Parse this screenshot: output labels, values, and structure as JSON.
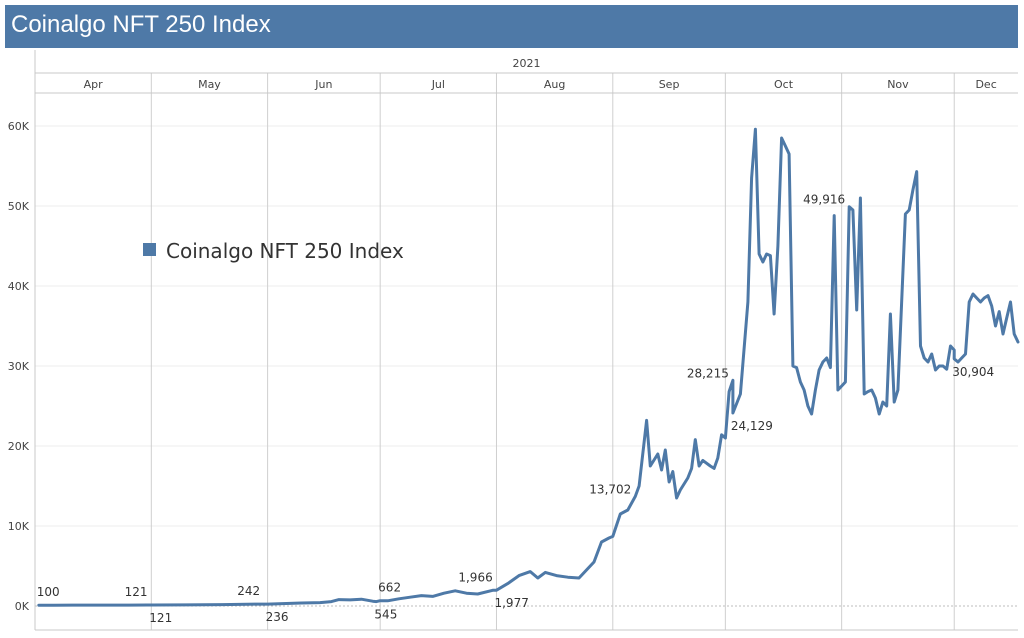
{
  "header": {
    "title": "Coinalgo NFT 250 Index"
  },
  "chart_data": {
    "type": "line",
    "title": "Coinalgo NFT 250 Index",
    "year_label": "2021",
    "months": [
      "Apr",
      "May",
      "Jun",
      "Jul",
      "Aug",
      "Sep",
      "Oct",
      "Nov",
      "Dec"
    ],
    "x_range": [
      "2021-03-31",
      "2021-12-18"
    ],
    "ylim": [
      0,
      62000
    ],
    "y_ticks": [
      0,
      10000,
      20000,
      30000,
      40000,
      50000,
      60000
    ],
    "y_tick_labels": [
      "0K",
      "10K",
      "20K",
      "30K",
      "40K",
      "50K",
      "60K"
    ],
    "grid": true,
    "legend": {
      "position": "left",
      "entries": [
        {
          "name": "Coinalgo NFT 250 Index",
          "color": "#4e79a7"
        }
      ]
    },
    "series": [
      {
        "name": "Coinalgo NFT 250 Index",
        "color": "#4e79a7",
        "points": [
          [
            "2021-04-01",
            100
          ],
          [
            "2021-04-05",
            105
          ],
          [
            "2021-04-10",
            112
          ],
          [
            "2021-04-15",
            110
          ],
          [
            "2021-04-20",
            116
          ],
          [
            "2021-04-25",
            118
          ],
          [
            "2021-04-30",
            121
          ],
          [
            "2021-05-01",
            121
          ],
          [
            "2021-05-10",
            140
          ],
          [
            "2021-05-20",
            170
          ],
          [
            "2021-05-30",
            242
          ],
          [
            "2021-06-01",
            236
          ],
          [
            "2021-06-05",
            300
          ],
          [
            "2021-06-10",
            380
          ],
          [
            "2021-06-15",
            420
          ],
          [
            "2021-06-18",
            550
          ],
          [
            "2021-06-20",
            800
          ],
          [
            "2021-06-23",
            760
          ],
          [
            "2021-06-26",
            850
          ],
          [
            "2021-06-29",
            600
          ],
          [
            "2021-06-30",
            545
          ],
          [
            "2021-07-01",
            662
          ],
          [
            "2021-07-03",
            650
          ],
          [
            "2021-07-06",
            900
          ],
          [
            "2021-07-09",
            1100
          ],
          [
            "2021-07-12",
            1300
          ],
          [
            "2021-07-15",
            1200
          ],
          [
            "2021-07-18",
            1600
          ],
          [
            "2021-07-21",
            1900
          ],
          [
            "2021-07-24",
            1600
          ],
          [
            "2021-07-27",
            1500
          ],
          [
            "2021-07-31",
            1966
          ],
          [
            "2021-08-01",
            1977
          ],
          [
            "2021-08-04",
            2800
          ],
          [
            "2021-08-07",
            3800
          ],
          [
            "2021-08-10",
            4300
          ],
          [
            "2021-08-12",
            3500
          ],
          [
            "2021-08-14",
            4200
          ],
          [
            "2021-08-17",
            3800
          ],
          [
            "2021-08-20",
            3600
          ],
          [
            "2021-08-23",
            3500
          ],
          [
            "2021-08-25",
            4500
          ],
          [
            "2021-08-27",
            5500
          ],
          [
            "2021-08-29",
            8000
          ],
          [
            "2021-08-31",
            8500
          ],
          [
            "2021-09-01",
            8700
          ],
          [
            "2021-09-03",
            11500
          ],
          [
            "2021-09-05",
            12000
          ],
          [
            "2021-09-07",
            13702
          ],
          [
            "2021-09-08",
            15000
          ],
          [
            "2021-09-10",
            23200
          ],
          [
            "2021-09-11",
            17500
          ],
          [
            "2021-09-13",
            19000
          ],
          [
            "2021-09-14",
            17000
          ],
          [
            "2021-09-15",
            19500
          ],
          [
            "2021-09-16",
            15500
          ],
          [
            "2021-09-17",
            16800
          ],
          [
            "2021-09-18",
            13500
          ],
          [
            "2021-09-19",
            14500
          ],
          [
            "2021-09-21",
            16000
          ],
          [
            "2021-09-22",
            17200
          ],
          [
            "2021-09-23",
            20800
          ],
          [
            "2021-09-24",
            17500
          ],
          [
            "2021-09-25",
            18200
          ],
          [
            "2021-09-27",
            17500
          ],
          [
            "2021-09-28",
            17200
          ],
          [
            "2021-09-29",
            18500
          ],
          [
            "2021-09-30",
            21400
          ],
          [
            "2021-10-01",
            21000
          ],
          [
            "2021-10-02",
            26800
          ],
          [
            "2021-10-03",
            28215
          ],
          [
            "2021-10-03",
            24129
          ],
          [
            "2021-10-05",
            26500
          ],
          [
            "2021-10-07",
            38000
          ],
          [
            "2021-10-08",
            53500
          ],
          [
            "2021-10-09",
            59600
          ],
          [
            "2021-10-10",
            44000
          ],
          [
            "2021-10-11",
            43000
          ],
          [
            "2021-10-12",
            44000
          ],
          [
            "2021-10-13",
            43800
          ],
          [
            "2021-10-14",
            36500
          ],
          [
            "2021-10-15",
            45000
          ],
          [
            "2021-10-16",
            58500
          ],
          [
            "2021-10-17",
            57500
          ],
          [
            "2021-10-18",
            56500
          ],
          [
            "2021-10-19",
            30000
          ],
          [
            "2021-10-20",
            29800
          ],
          [
            "2021-10-21",
            28000
          ],
          [
            "2021-10-22",
            27000
          ],
          [
            "2021-10-23",
            25000
          ],
          [
            "2021-10-24",
            24000
          ],
          [
            "2021-10-25",
            27000
          ],
          [
            "2021-10-26",
            29500
          ],
          [
            "2021-10-27",
            30500
          ],
          [
            "2021-10-28",
            31000
          ],
          [
            "2021-10-29",
            29800
          ],
          [
            "2021-10-30",
            48800
          ],
          [
            "2021-10-31",
            27000
          ],
          [
            "2021-11-01",
            27500
          ],
          [
            "2021-11-02",
            28000
          ],
          [
            "2021-11-03",
            49916
          ],
          [
            "2021-11-04",
            49500
          ],
          [
            "2021-11-05",
            37000
          ],
          [
            "2021-11-06",
            51000
          ],
          [
            "2021-11-07",
            26500
          ],
          [
            "2021-11-08",
            26800
          ],
          [
            "2021-11-09",
            27000
          ],
          [
            "2021-11-10",
            26000
          ],
          [
            "2021-11-11",
            24000
          ],
          [
            "2021-11-12",
            25500
          ],
          [
            "2021-11-13",
            25000
          ],
          [
            "2021-11-14",
            36500
          ],
          [
            "2021-11-15",
            25500
          ],
          [
            "2021-11-16",
            27000
          ],
          [
            "2021-11-18",
            49000
          ],
          [
            "2021-11-19",
            49500
          ],
          [
            "2021-11-20",
            52000
          ],
          [
            "2021-11-21",
            54300
          ],
          [
            "2021-11-22",
            32500
          ],
          [
            "2021-11-23",
            31000
          ],
          [
            "2021-11-24",
            30500
          ],
          [
            "2021-11-25",
            31500
          ],
          [
            "2021-11-26",
            29500
          ],
          [
            "2021-11-27",
            30000
          ],
          [
            "2021-11-28",
            30000
          ],
          [
            "2021-11-29",
            29600
          ],
          [
            "2021-11-30",
            32500
          ],
          [
            "2021-12-01",
            32000
          ],
          [
            "2021-12-01",
            30904
          ],
          [
            "2021-12-02",
            30500
          ],
          [
            "2021-12-03",
            31000
          ],
          [
            "2021-12-04",
            31500
          ],
          [
            "2021-12-05",
            38000
          ],
          [
            "2021-12-06",
            39000
          ],
          [
            "2021-12-07",
            38500
          ],
          [
            "2021-12-08",
            38000
          ],
          [
            "2021-12-09",
            38500
          ],
          [
            "2021-12-10",
            38800
          ],
          [
            "2021-12-11",
            37500
          ],
          [
            "2021-12-12",
            35000
          ],
          [
            "2021-12-13",
            36800
          ],
          [
            "2021-12-14",
            34000
          ],
          [
            "2021-12-15",
            36000
          ],
          [
            "2021-12-16",
            38000
          ],
          [
            "2021-12-17",
            34000
          ],
          [
            "2021-12-18",
            33000
          ]
        ]
      }
    ],
    "annotations": [
      {
        "date": "2021-04-01",
        "value": 100,
        "label": "100",
        "pos": "above"
      },
      {
        "date": "2021-04-30",
        "value": 121,
        "label": "121",
        "pos": "above"
      },
      {
        "date": "2021-05-01",
        "value": 121,
        "label": "121",
        "pos": "below"
      },
      {
        "date": "2021-05-30",
        "value": 242,
        "label": "242",
        "pos": "above"
      },
      {
        "date": "2021-06-01",
        "value": 236,
        "label": "236",
        "pos": "below"
      },
      {
        "date": "2021-06-30",
        "value": 545,
        "label": "545",
        "pos": "below"
      },
      {
        "date": "2021-07-01",
        "value": 662,
        "label": "662",
        "pos": "above"
      },
      {
        "date": "2021-07-31",
        "value": 1966,
        "label": "1,966",
        "pos": "above"
      },
      {
        "date": "2021-08-01",
        "value": 1977,
        "label": "1,977",
        "pos": "below"
      },
      {
        "date": "2021-09-07",
        "value": 13702,
        "label": "13,702",
        "pos": "left"
      },
      {
        "date": "2021-10-03",
        "value": 28215,
        "label": "28,215",
        "pos": "left"
      },
      {
        "date": "2021-10-03",
        "value": 24129,
        "label": "24,129",
        "pos": "below"
      },
      {
        "date": "2021-11-03",
        "value": 49916,
        "label": "49,916",
        "pos": "left"
      },
      {
        "date": "2021-12-01",
        "value": 30904,
        "label": "30,904",
        "pos": "below"
      }
    ]
  }
}
